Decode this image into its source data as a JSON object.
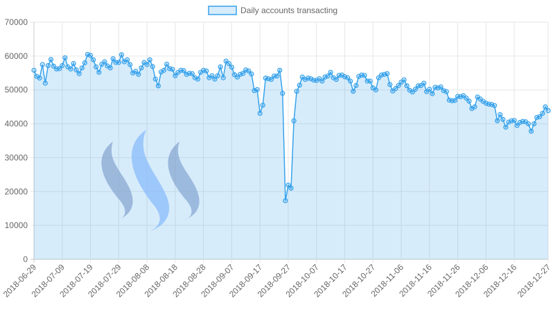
{
  "chart_data": {
    "type": "area",
    "legend_position": "top",
    "grid": true,
    "ylim": [
      0,
      70000
    ],
    "y_ticks": [
      "0",
      "10000",
      "20000",
      "30000",
      "40000",
      "50000",
      "60000",
      "70000"
    ],
    "x_tick_labels": [
      "2018-06-29",
      "2018-07-09",
      "2018-07-19",
      "2018-07-29",
      "2018-08-08",
      "2018-08-18",
      "2018-08-28",
      "2018-09-07",
      "2018-09-17",
      "2018-09-27",
      "2018-10-07",
      "2018-10-17",
      "2018-10-27",
      "2018-11-06",
      "2018-11-16",
      "2018-11-26",
      "2018-12-06",
      "2018-12-16",
      "2018-12-27"
    ],
    "series": [
      {
        "name": "Daily accounts transacting",
        "color": "#36a2eb",
        "fill": "rgba(54,162,235,0.2)",
        "x_start": "2018-06-29",
        "x_end": "2018-12-27",
        "values": [
          55800,
          54000,
          53500,
          57500,
          52000,
          57200,
          59000,
          57000,
          56200,
          56300,
          57200,
          59500,
          56800,
          56200,
          57800,
          55900,
          54800,
          56500,
          58000,
          60500,
          60200,
          58900,
          56800,
          55200,
          57600,
          58300,
          57100,
          56500,
          59200,
          58100,
          58100,
          60400,
          58300,
          58900,
          57500,
          55000,
          55500,
          54600,
          56500,
          58100,
          57500,
          58900,
          56900,
          53200,
          51200,
          55300,
          55800,
          57600,
          56300,
          56100,
          54200,
          55200,
          55800,
          55700,
          54600,
          54900,
          54800,
          53600,
          53200,
          55200,
          55800,
          55600,
          53600,
          54200,
          53200,
          54200,
          56800,
          53600,
          58500,
          57800,
          56700,
          54500,
          53800,
          54600,
          54900,
          55900,
          55600,
          54700,
          49800,
          50100,
          43100,
          45500,
          53500,
          53300,
          53100,
          54100,
          54100,
          55800,
          49000,
          17300,
          21900,
          21000,
          40900,
          49600,
          51400,
          53800,
          53100,
          53500,
          53300,
          52900,
          52800,
          53300,
          52600,
          53800,
          54100,
          55200,
          53600,
          53100,
          54300,
          54400,
          53900,
          53600,
          52600,
          49600,
          51300,
          54000,
          54400,
          54300,
          52600,
          52600,
          50600,
          50000,
          53600,
          54400,
          54600,
          54800,
          51600,
          49700,
          50400,
          51300,
          52300,
          53000,
          51200,
          49900,
          49400,
          50200,
          51200,
          51300,
          52000,
          49500,
          50200,
          48900,
          50800,
          50600,
          50900,
          49800,
          49500,
          47000,
          46800,
          46900,
          48100,
          48000,
          48300,
          47600,
          46700,
          44500,
          45000,
          47900,
          47300,
          46600,
          46100,
          45800,
          45700,
          45400,
          40900,
          42700,
          41300,
          39000,
          40500,
          40900,
          41000,
          39500,
          40400,
          40700,
          40600,
          40000,
          37800,
          40000,
          41900,
          42100,
          43100,
          45000,
          43900
        ]
      }
    ]
  }
}
